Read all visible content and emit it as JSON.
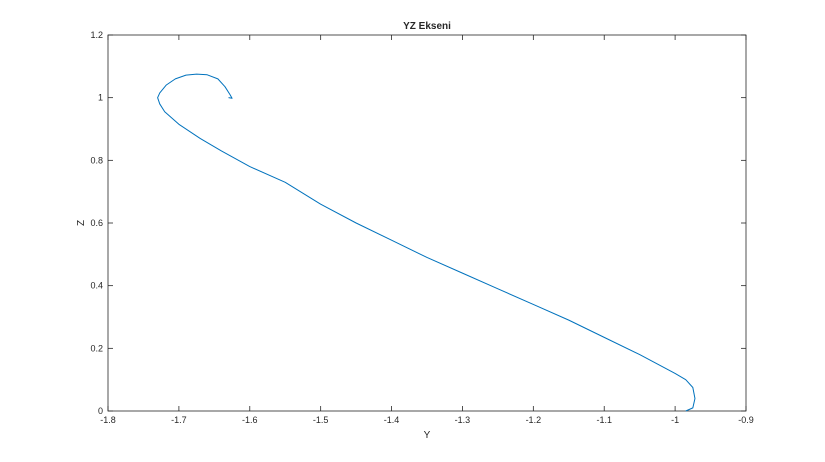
{
  "chart_data": {
    "type": "line",
    "title": "YZ Ekseni",
    "xlabel": "Y",
    "ylabel": "Z",
    "xlim": [
      -1.8,
      -0.9
    ],
    "ylim": [
      0,
      1.2
    ],
    "xticks": [
      "-1.8",
      "-1.7",
      "-1.6",
      "-1.5",
      "-1.4",
      "-1.3",
      "-1.2",
      "-1.1",
      "-1",
      "-0.9"
    ],
    "yticks": [
      "0",
      "0.2",
      "0.4",
      "0.6",
      "0.8",
      "1",
      "1.2"
    ],
    "grid": false,
    "line_color": "#0072bd",
    "series": [
      {
        "x": [
          -1.63,
          -1.625,
          -1.628,
          -1.635,
          -1.645,
          -1.66,
          -1.675,
          -1.69,
          -1.705,
          -1.718,
          -1.727,
          -1.73,
          -1.727,
          -1.72,
          -1.7,
          -1.67,
          -1.64,
          -1.6,
          -1.55,
          -1.5,
          -1.45,
          -1.4,
          -1.35,
          -1.3,
          -1.25,
          -1.2,
          -1.15,
          -1.1,
          -1.05,
          -1.0,
          -0.985,
          -0.975,
          -0.972,
          -0.975,
          -0.985
        ],
        "y": [
          1.0,
          0.998,
          1.01,
          1.035,
          1.06,
          1.073,
          1.075,
          1.072,
          1.06,
          1.04,
          1.015,
          1.0,
          0.98,
          0.955,
          0.915,
          0.87,
          0.83,
          0.78,
          0.73,
          0.66,
          0.6,
          0.545,
          0.49,
          0.44,
          0.39,
          0.34,
          0.29,
          0.235,
          0.18,
          0.12,
          0.1,
          0.075,
          0.04,
          0.01,
          0.0
        ]
      }
    ]
  }
}
